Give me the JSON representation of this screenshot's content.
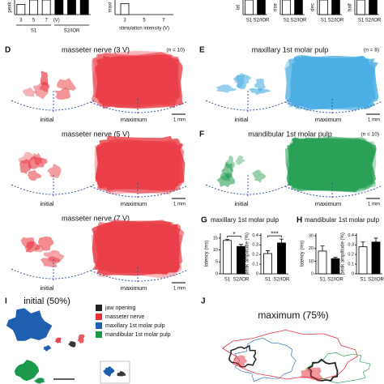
{
  "chart_data": [
    {
      "type": "bar",
      "y_label": "peak",
      "categories": [
        "3",
        "5",
        "7",
        null,
        null,
        null
      ],
      "unit_label": "(V)",
      "groups": [
        "S1",
        "S2/IOR"
      ],
      "values": [
        0.7,
        1,
        1,
        1,
        1,
        1
      ],
      "colors": [
        "#ffffff",
        "#ffffff",
        "#ffffff",
        "#000000",
        "#000000",
        "#000000"
      ],
      "ylim": [
        0,
        1
      ]
    },
    {
      "type": "bar",
      "y_label": "maxi",
      "categories": [
        "3",
        "5",
        "7"
      ],
      "x_label": "stimulation intensity (V)",
      "values": [
        0.75,
        null,
        null
      ],
      "colors": [
        "#ffffff",
        "#ffffff",
        "#ffffff"
      ],
      "ylim": [
        0,
        1
      ]
    },
    {
      "type": "bar",
      "y_label": "lat",
      "categories": [
        "S1",
        "S2/IOR"
      ],
      "values": [
        1,
        1
      ],
      "colors": [
        "#ffffff",
        "#000000"
      ],
      "ylim": [
        0,
        1
      ]
    },
    {
      "type": "bar",
      "y_label": "rise",
      "categories": [
        "S1",
        "S2/IOR"
      ],
      "values": [
        1,
        1
      ],
      "colors": [
        "#ffffff",
        "#000000"
      ],
      "ylim": [
        0,
        1
      ]
    },
    {
      "type": "bar",
      "y_label": "dec",
      "categories": [
        "S1",
        "S2/IOR"
      ],
      "values": [
        1,
        1
      ],
      "colors": [
        "#ffffff",
        "#000000"
      ],
      "ylim": [
        0,
        1
      ]
    },
    {
      "type": "bar",
      "y_label": "half",
      "categories": [
        "S1",
        "S2/IOR"
      ],
      "values": [
        1,
        1
      ],
      "colors": [
        "#ffffff",
        "#000000"
      ],
      "ylim": [
        0,
        1
      ]
    },
    {
      "type": "bar",
      "y_label": "latency (ms)",
      "categories": [
        "S1",
        "S2/IOR"
      ],
      "values": [
        14,
        11.5
      ],
      "errors": [
        0.4,
        0.8
      ],
      "colors": [
        "#ffffff",
        "#000000"
      ],
      "ylim": [
        0,
        17
      ],
      "yticks": [
        0,
        5,
        10,
        15
      ],
      "annotation": "*"
    },
    {
      "type": "bar",
      "y_label": "peak amplitude (%)",
      "categories": [
        "S1",
        "S2/IOR"
      ],
      "values": [
        0.21,
        0.32
      ],
      "errors": [
        0.03,
        0.04
      ],
      "colors": [
        "#ffffff",
        "#000000"
      ],
      "ylim": [
        0,
        0.42
      ],
      "yticks": [
        0,
        0.1,
        0.2,
        0.3,
        0.4
      ],
      "annotation": "***"
    },
    {
      "type": "bar",
      "y_label": "latency (ms)",
      "categories": [
        "S1",
        "S2/IOR"
      ],
      "values": [
        18,
        12
      ],
      "errors": [
        4,
        1
      ],
      "colors": [
        "#ffffff",
        "#000000"
      ],
      "ylim": [
        0,
        32
      ],
      "yticks": [
        0,
        10,
        20,
        30
      ]
    },
    {
      "type": "bar",
      "y_label": "peak amplitude (%)",
      "categories": [
        "S1",
        "S2/IOR"
      ],
      "values": [
        0.28,
        0.33
      ],
      "errors": [
        0.05,
        0.04
      ],
      "colors": [
        "#ffffff",
        "#000000"
      ],
      "ylim": [
        0,
        0.42
      ],
      "yticks": [
        0,
        0.1,
        0.2,
        0.3,
        0.4
      ]
    }
  ],
  "maps": [
    {
      "letter": "D",
      "title": "masseter nerve (3 V)",
      "n": "(n = 10)",
      "initial": "initial",
      "maximum": "maximum",
      "scale": "1 mm",
      "color": "#e8303a"
    },
    {
      "title": "masseter nerve (5 V)",
      "initial": "initial",
      "maximum": "maximum",
      "scale": "1 mm",
      "color": "#e8303a"
    },
    {
      "title": "masseter nerve (7 V)",
      "initial": "initial",
      "maximum": "maximum",
      "scale": "1 mm",
      "color": "#e8303a"
    },
    {
      "letter": "E",
      "title": "maxillary 1st molar pulp",
      "n": "(n = 8)",
      "initial": "initial",
      "maximum": "maximum",
      "scale": "1 mm",
      "color": "#3ea8e0"
    },
    {
      "letter": "F",
      "title": "mandibular 1st molar pulp",
      "n": "(n = 10)",
      "initial": "initial",
      "maximum": "maximum",
      "scale": "1 mm",
      "color": "#1a9a4a"
    }
  ],
  "G": {
    "letter": "G",
    "title": "maxillary 1st molar pulp"
  },
  "H": {
    "letter": "H",
    "title": "mandibular 1st molar pulp"
  },
  "I": {
    "letter": "I",
    "title": "initial (50%)",
    "legend": [
      {
        "label": "jaw opening",
        "color": "#222222"
      },
      {
        "label": "masseter nerve",
        "color": "#e8303a"
      },
      {
        "label": "maxillary 1st molar pulp",
        "color": "#1f5fb0"
      },
      {
        "label": "mandibular 1st molar pulp",
        "color": "#1a9a4a"
      }
    ]
  },
  "J": {
    "letter": "J",
    "title": "maximum (75%)"
  }
}
